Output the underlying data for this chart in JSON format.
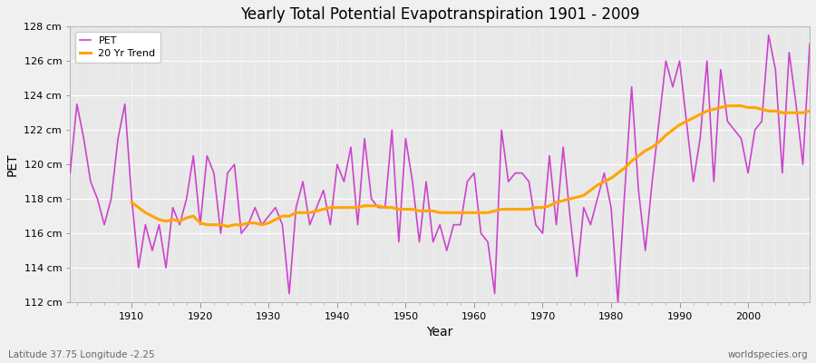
{
  "title": "Yearly Total Potential Evapotranspiration 1901 - 2009",
  "xlabel": "Year",
  "ylabel": "PET",
  "footnote_left": "Latitude 37.75 Longitude -2.25",
  "footnote_right": "worldspecies.org",
  "pet_color": "#CC44CC",
  "trend_color": "#FFA500",
  "background_color": "#F0F0F0",
  "plot_bg_color": "#E8E8E8",
  "grid_color": "#FFFFFF",
  "ylim": [
    112,
    128
  ],
  "xlim": [
    1901,
    2009
  ],
  "ytick_labels": [
    "112 cm",
    "114 cm",
    "116 cm",
    "118 cm",
    "120 cm",
    "122 cm",
    "124 cm",
    "126 cm",
    "128 cm"
  ],
  "ytick_values": [
    112,
    114,
    116,
    118,
    120,
    122,
    124,
    126,
    128
  ],
  "years": [
    1901,
    1902,
    1903,
    1904,
    1905,
    1906,
    1907,
    1908,
    1909,
    1910,
    1911,
    1912,
    1913,
    1914,
    1915,
    1916,
    1917,
    1918,
    1919,
    1920,
    1921,
    1922,
    1923,
    1924,
    1925,
    1926,
    1927,
    1928,
    1929,
    1930,
    1931,
    1932,
    1933,
    1934,
    1935,
    1936,
    1937,
    1938,
    1939,
    1940,
    1941,
    1942,
    1943,
    1944,
    1945,
    1946,
    1947,
    1948,
    1949,
    1950,
    1951,
    1952,
    1953,
    1954,
    1955,
    1956,
    1957,
    1958,
    1959,
    1960,
    1961,
    1962,
    1963,
    1964,
    1965,
    1966,
    1967,
    1968,
    1969,
    1970,
    1971,
    1972,
    1973,
    1974,
    1975,
    1976,
    1977,
    1978,
    1979,
    1980,
    1981,
    1982,
    1983,
    1984,
    1985,
    1986,
    1987,
    1988,
    1989,
    1990,
    1991,
    1992,
    1993,
    1994,
    1995,
    1996,
    1997,
    1998,
    1999,
    2000,
    2001,
    2002,
    2003,
    2004,
    2005,
    2006,
    2007,
    2008,
    2009
  ],
  "pet_values": [
    119.5,
    123.5,
    121.5,
    119.0,
    118.0,
    116.5,
    118.0,
    121.5,
    123.5,
    118.0,
    114.0,
    116.5,
    115.0,
    116.5,
    114.0,
    117.5,
    116.5,
    118.0,
    120.5,
    116.5,
    120.5,
    119.5,
    116.0,
    119.5,
    120.0,
    116.0,
    116.5,
    117.5,
    116.5,
    117.0,
    117.5,
    116.5,
    112.5,
    117.5,
    119.0,
    116.5,
    117.5,
    118.5,
    116.5,
    120.0,
    119.0,
    121.0,
    116.5,
    121.5,
    118.0,
    117.5,
    117.5,
    122.0,
    115.5,
    121.5,
    119.0,
    115.5,
    119.0,
    115.5,
    116.5,
    115.0,
    116.5,
    116.5,
    119.0,
    119.5,
    116.0,
    115.5,
    112.5,
    122.0,
    119.0,
    119.5,
    119.5,
    119.0,
    116.5,
    116.0,
    120.5,
    116.5,
    121.0,
    117.0,
    113.5,
    117.5,
    116.5,
    118.0,
    119.5,
    117.5,
    112.0,
    118.5,
    124.5,
    118.5,
    115.0,
    119.0,
    122.5,
    126.0,
    124.5,
    126.0,
    122.5,
    119.0,
    121.5,
    126.0,
    119.0,
    125.5,
    122.5,
    122.0,
    121.5,
    119.5,
    122.0,
    122.5,
    127.5,
    125.5,
    119.5,
    126.5,
    123.5,
    120.0,
    127.0
  ],
  "trend_values": [
    null,
    null,
    null,
    null,
    null,
    null,
    null,
    null,
    null,
    117.8,
    117.5,
    117.2,
    117.0,
    116.8,
    116.7,
    116.8,
    116.7,
    116.9,
    117.0,
    116.6,
    116.5,
    116.5,
    116.5,
    116.4,
    116.5,
    116.5,
    116.6,
    116.6,
    116.5,
    116.6,
    116.8,
    117.0,
    117.0,
    117.2,
    117.2,
    117.2,
    117.3,
    117.4,
    117.5,
    117.5,
    117.5,
    117.5,
    117.5,
    117.6,
    117.6,
    117.6,
    117.5,
    117.5,
    117.4,
    117.4,
    117.4,
    117.3,
    117.3,
    117.3,
    117.2,
    117.2,
    117.2,
    117.2,
    117.2,
    117.2,
    117.2,
    117.2,
    117.3,
    117.4,
    117.4,
    117.4,
    117.4,
    117.4,
    117.5,
    117.5,
    117.6,
    117.8,
    117.9,
    118.0,
    118.1,
    118.2,
    118.5,
    118.8,
    119.0,
    119.2,
    119.5,
    119.8,
    120.2,
    120.5,
    120.8,
    121.0,
    121.3,
    121.7,
    122.0,
    122.3,
    122.5,
    122.7,
    122.9,
    123.1,
    123.2,
    123.3,
    123.4,
    123.4,
    123.4,
    123.3,
    123.3,
    123.2,
    123.1,
    123.1,
    123.0,
    123.0,
    123.0,
    123.0,
    123.1
  ]
}
